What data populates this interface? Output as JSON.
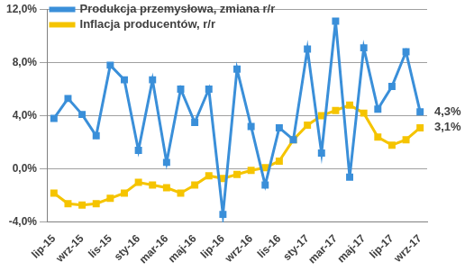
{
  "chart_data": {
    "type": "line",
    "categories": [
      "lip-15",
      null,
      "wrz-15",
      null,
      "lis-15",
      null,
      "sty-16",
      null,
      "mar-16",
      null,
      "maj-16",
      null,
      "lip-16",
      null,
      "wrz-16",
      null,
      "lis-16",
      null,
      "sty-17",
      null,
      "mar-17",
      null,
      "maj-17",
      null,
      "lip-17",
      null,
      "wrz-17"
    ],
    "series": [
      {
        "name": "Produkcja przemysłowa, zmiana r/r",
        "color": "#3a8fd9",
        "marker": "square",
        "line_style": "solid",
        "values": [
          3.8,
          5.3,
          4.1,
          2.5,
          7.8,
          6.7,
          1.4,
          6.7,
          0.5,
          6.0,
          3.5,
          6.0,
          -3.4,
          7.5,
          3.2,
          -1.2,
          3.1,
          2.2,
          9.0,
          1.2,
          11.1,
          -0.6,
          9.1,
          4.5,
          6.2,
          8.8,
          4.3
        ]
      },
      {
        "name": "Inflacja producentów, r/r",
        "color": "#f5c400",
        "marker": "square",
        "line_style": "solid",
        "values": [
          -1.8,
          -2.6,
          -2.7,
          -2.6,
          -2.2,
          -1.8,
          -1.0,
          -1.2,
          -1.4,
          -1.8,
          -1.2,
          -0.5,
          -0.7,
          -0.4,
          -0.1,
          0.1,
          0.6,
          2.2,
          3.3,
          4.0,
          4.4,
          4.8,
          4.2,
          2.4,
          1.8,
          2.2,
          3.1
        ]
      }
    ],
    "ylim": [
      -4,
      12
    ],
    "yticks": [
      {
        "value": -4,
        "label": "-4,0%"
      },
      {
        "value": 0,
        "label": "0,0%"
      },
      {
        "value": 4,
        "label": "4,0%"
      },
      {
        "value": 8,
        "label": "8,0%"
      },
      {
        "value": 12,
        "label": "12,0%"
      }
    ],
    "grid": true,
    "legend": "top-left",
    "annotations": [
      {
        "text": "4,3%",
        "value": 4.3
      },
      {
        "text": "3,1%",
        "value": 3.1
      }
    ]
  }
}
